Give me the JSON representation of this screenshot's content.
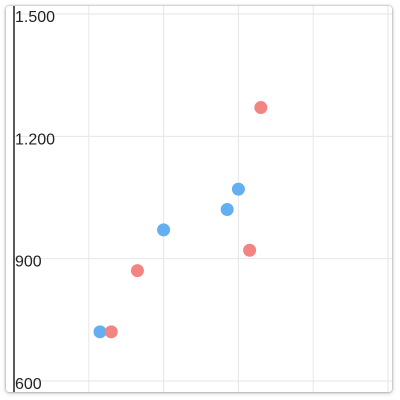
{
  "chart_data": {
    "type": "scatter",
    "title": "",
    "xlabel": "",
    "ylabel": "",
    "ylim": [
      600,
      1500
    ],
    "xlim": [
      0,
      5
    ],
    "y_ticks": [
      {
        "value": 600,
        "label": "600"
      },
      {
        "value": 900,
        "label": "900"
      },
      {
        "value": 1200,
        "label": "1.200"
      },
      {
        "value": 1500,
        "label": "1.500"
      }
    ],
    "x_gridlines": [
      1,
      2,
      3,
      4,
      5
    ],
    "grid": true,
    "series": [
      {
        "color": "#64aef2",
        "points": [
          {
            "x": 1.15,
            "y": 750
          },
          {
            "x": 2.0,
            "y": 1000
          },
          {
            "x": 2.85,
            "y": 1050
          },
          {
            "x": 3.0,
            "y": 1100
          }
        ]
      },
      {
        "color": "#f28482",
        "points": [
          {
            "x": 1.3,
            "y": 750
          },
          {
            "x": 1.65,
            "y": 900
          },
          {
            "x": 3.15,
            "y": 950
          },
          {
            "x": 3.3,
            "y": 1300
          }
        ]
      }
    ]
  }
}
